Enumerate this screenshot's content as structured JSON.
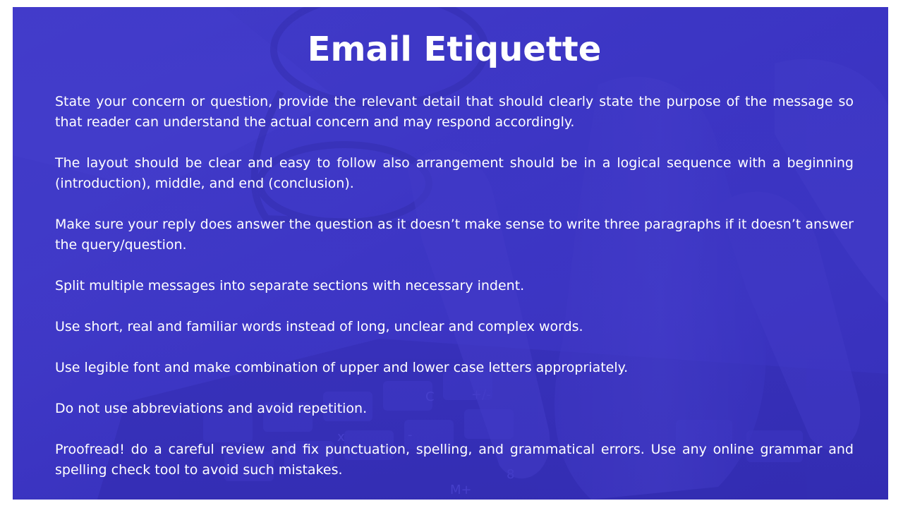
{
  "slide": {
    "background_color": "#3d36c4",
    "title": "Email Etiquette",
    "paragraphs": [
      "State your concern or question, provide the relevant detail that should clearly state the purpose of the message so that reader can understand the actual concern and may respond accordingly.",
      "The layout should be clear and easy to follow also arrangement should be in a logical sequence with a beginning (introduction), middle, and end (conclusion).",
      "Make sure your reply does answer the question as it doesn’t make sense to write three paragraphs if it doesn’t answer the query/question.",
      "Split multiple messages into separate sections with necessary indent.",
      "Use short, real and familiar words instead of long, unclear and complex words.",
      "Use legible font and make combination of upper and lower case letters appropriately.",
      "Do not use abbreviations and avoid repetition.",
      "Proofread! do a careful review and fix punctuation, spelling, and grammatical errors. Use any online grammar and spelling check tool to avoid such mistakes."
    ],
    "background_labels": {
      "key_c": "C",
      "key_plus_minus": "+/-",
      "key_mplus": "M+",
      "key_8": "8",
      "key_x": "x",
      "key_minus": "-"
    }
  }
}
